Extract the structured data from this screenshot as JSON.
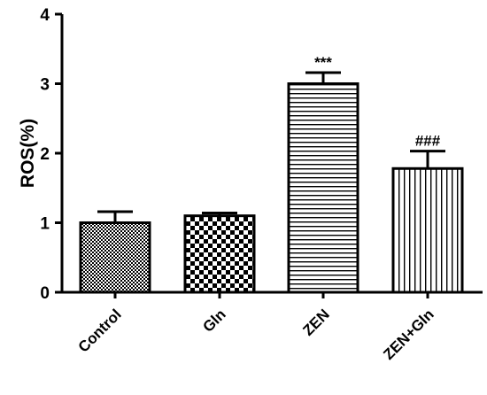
{
  "chart_data": {
    "type": "bar",
    "title": "",
    "xlabel": "",
    "ylabel": "ROS(%)",
    "ylim": [
      0,
      4
    ],
    "yticks": [
      "0",
      "1",
      "2",
      "3",
      "4"
    ],
    "grid": false,
    "legend": "none",
    "categories": [
      "Control",
      "Gln",
      "ZEN",
      "ZEN+Gln"
    ],
    "values": [
      1.0,
      1.1,
      3.0,
      1.78
    ],
    "errors": [
      0.16,
      0.04,
      0.16,
      0.25
    ],
    "significance": [
      "",
      "",
      "***",
      "###"
    ],
    "patterns": [
      "fine-checker",
      "coarse-checker",
      "horizontal-lines",
      "vertical-lines"
    ],
    "colors": {
      "bar_stroke": "#000000",
      "pattern": "#000000",
      "background": "#ffffff"
    }
  }
}
